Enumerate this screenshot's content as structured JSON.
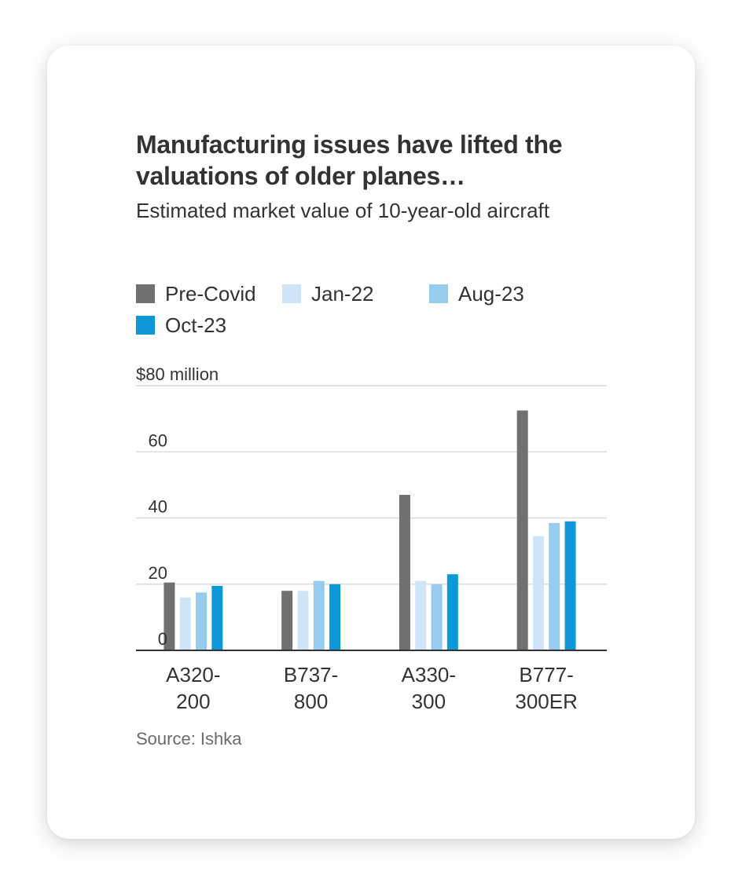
{
  "title": "Manufacturing issues have lifted the valuations of older planes…",
  "subtitle": "Estimated market value of 10-year-old aircraft",
  "source": "Source: Ishka",
  "colors": {
    "pre_covid": "#707070",
    "jan22": "#cfe5f7",
    "aug23": "#96cdee",
    "oct23": "#0f98d8",
    "grid": "#dcdcdc",
    "axis": "#333333",
    "text": "#333333"
  },
  "legend": [
    {
      "label": "Pre-Covid",
      "color": "#707070"
    },
    {
      "label": "Jan-22",
      "color": "#cfe5f7"
    },
    {
      "label": "Aug-23",
      "color": "#96cdee"
    },
    {
      "label": "Oct-23",
      "color": "#0f98d8"
    }
  ],
  "chart_data": {
    "type": "bar",
    "title": "Manufacturing issues have lifted the valuations of older planes…",
    "subtitle": "Estimated market value of 10-year-old aircraft",
    "categories": [
      [
        "A320-",
        "200"
      ],
      [
        "B737-",
        "800"
      ],
      [
        "A330-",
        "300"
      ],
      [
        "B777-",
        "300ER"
      ]
    ],
    "series": [
      {
        "name": "Pre-Covid",
        "values": [
          20.5,
          18,
          47,
          72.5
        ]
      },
      {
        "name": "Jan-22",
        "values": [
          16,
          18,
          21,
          34.5
        ]
      },
      {
        "name": "Aug-23",
        "values": [
          17.5,
          21,
          20,
          38.5
        ]
      },
      {
        "name": "Oct-23",
        "values": [
          19.5,
          20,
          23,
          39
        ]
      }
    ],
    "yticks": [
      {
        "value": 0,
        "label": "0"
      },
      {
        "value": 20,
        "label": "20"
      },
      {
        "value": 40,
        "label": "40"
      },
      {
        "value": 60,
        "label": "60"
      },
      {
        "value": 80,
        "label": "$80 million"
      }
    ],
    "ylim": [
      0,
      80
    ],
    "xlabel": "",
    "ylabel": "",
    "grid": true,
    "legend_position": "top-left"
  }
}
